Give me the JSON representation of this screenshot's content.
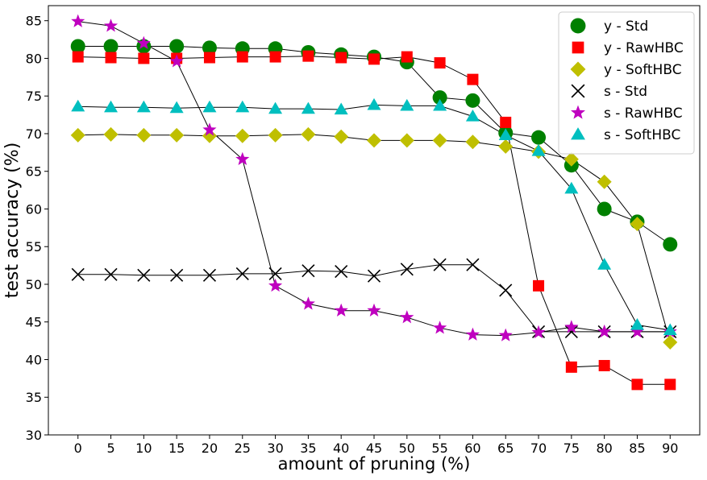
{
  "chart_data": {
    "type": "line",
    "title": "",
    "xlabel": "amount of pruning (%)",
    "ylabel": "test accuracy (%)",
    "x": [
      0,
      5,
      10,
      15,
      20,
      25,
      30,
      35,
      40,
      45,
      50,
      55,
      60,
      65,
      70,
      75,
      80,
      85,
      90
    ],
    "x_ticks": [
      "0",
      "5",
      "10",
      "15",
      "20",
      "25",
      "30",
      "35",
      "40",
      "45",
      "50",
      "55",
      "60",
      "65",
      "70",
      "75",
      "80",
      "85",
      "90"
    ],
    "xlim": [
      -4.5,
      94.5
    ],
    "ylim": [
      30,
      87
    ],
    "y_ticks": [
      "30",
      "35",
      "40",
      "45",
      "50",
      "55",
      "60",
      "65",
      "70",
      "75",
      "80",
      "85"
    ],
    "grid": false,
    "legend_position": "top-right",
    "series": [
      {
        "name": "y - Std",
        "marker": "circle",
        "color": "#008000",
        "values": [
          81.6,
          81.6,
          81.6,
          81.6,
          81.4,
          81.3,
          81.3,
          80.8,
          80.5,
          80.2,
          79.5,
          74.8,
          74.4,
          70.1,
          69.5,
          65.8,
          60.0,
          58.3,
          55.3
        ]
      },
      {
        "name": "y - RawHBC",
        "marker": "square",
        "color": "#ff0000",
        "values": [
          80.2,
          80.1,
          80.0,
          80.0,
          80.1,
          80.2,
          80.2,
          80.3,
          80.1,
          79.9,
          80.2,
          79.4,
          77.2,
          71.5,
          49.8,
          39.0,
          39.2,
          36.7,
          36.7
        ]
      },
      {
        "name": "y - SoftHBC",
        "marker": "diamond",
        "color": "#bfbf00",
        "values": [
          69.8,
          69.9,
          69.8,
          69.8,
          69.7,
          69.7,
          69.8,
          69.9,
          69.6,
          69.1,
          69.1,
          69.1,
          68.9,
          68.3,
          67.6,
          66.6,
          63.6,
          58.0,
          42.3
        ]
      },
      {
        "name": "s - Std",
        "marker": "x",
        "color": "#000000",
        "values": [
          51.3,
          51.3,
          51.2,
          51.2,
          51.2,
          51.4,
          51.4,
          51.8,
          51.7,
          51.1,
          52.0,
          52.6,
          52.6,
          49.2,
          43.7,
          43.7,
          43.7,
          43.7,
          43.7
        ]
      },
      {
        "name": "s - RawHBC",
        "marker": "star",
        "color": "#bf00bf",
        "values": [
          84.9,
          84.3,
          82.0,
          79.6,
          70.5,
          66.6,
          49.8,
          47.4,
          46.5,
          46.5,
          45.6,
          44.2,
          43.3,
          43.2,
          43.6,
          44.3,
          43.7,
          43.7,
          43.7
        ]
      },
      {
        "name": "s - SoftHBC",
        "marker": "triangle",
        "color": "#00bfbf",
        "values": [
          73.6,
          73.5,
          73.5,
          73.4,
          73.5,
          73.5,
          73.3,
          73.3,
          73.2,
          73.8,
          73.7,
          73.7,
          72.3,
          69.8,
          67.7,
          62.7,
          52.6,
          44.6,
          43.9
        ]
      }
    ]
  }
}
